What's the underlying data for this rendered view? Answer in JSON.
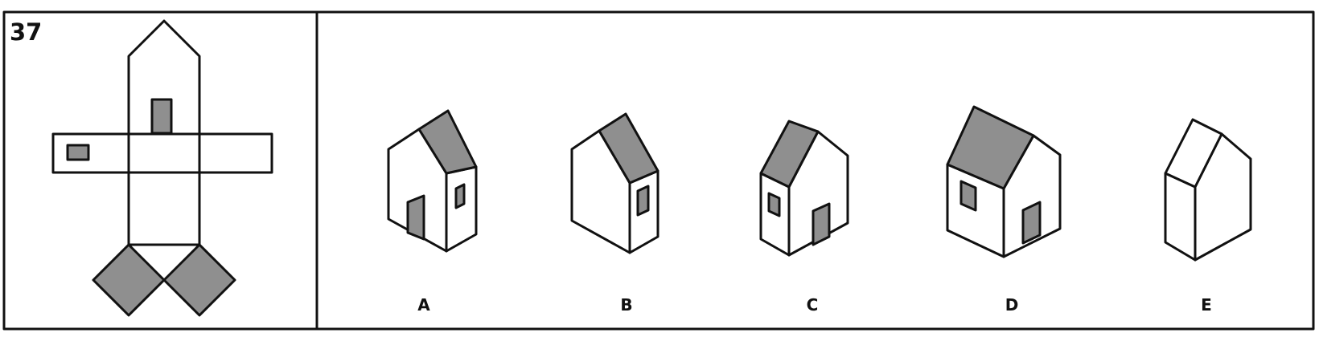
{
  "question": {
    "number": "37"
  },
  "options": [
    {
      "label": "A"
    },
    {
      "label": "B"
    },
    {
      "label": "C"
    },
    {
      "label": "D"
    },
    {
      "label": "E"
    }
  ],
  "colors": {
    "ink": "#111111",
    "shade": "#8f8f8f",
    "paper": "#ffffff"
  }
}
